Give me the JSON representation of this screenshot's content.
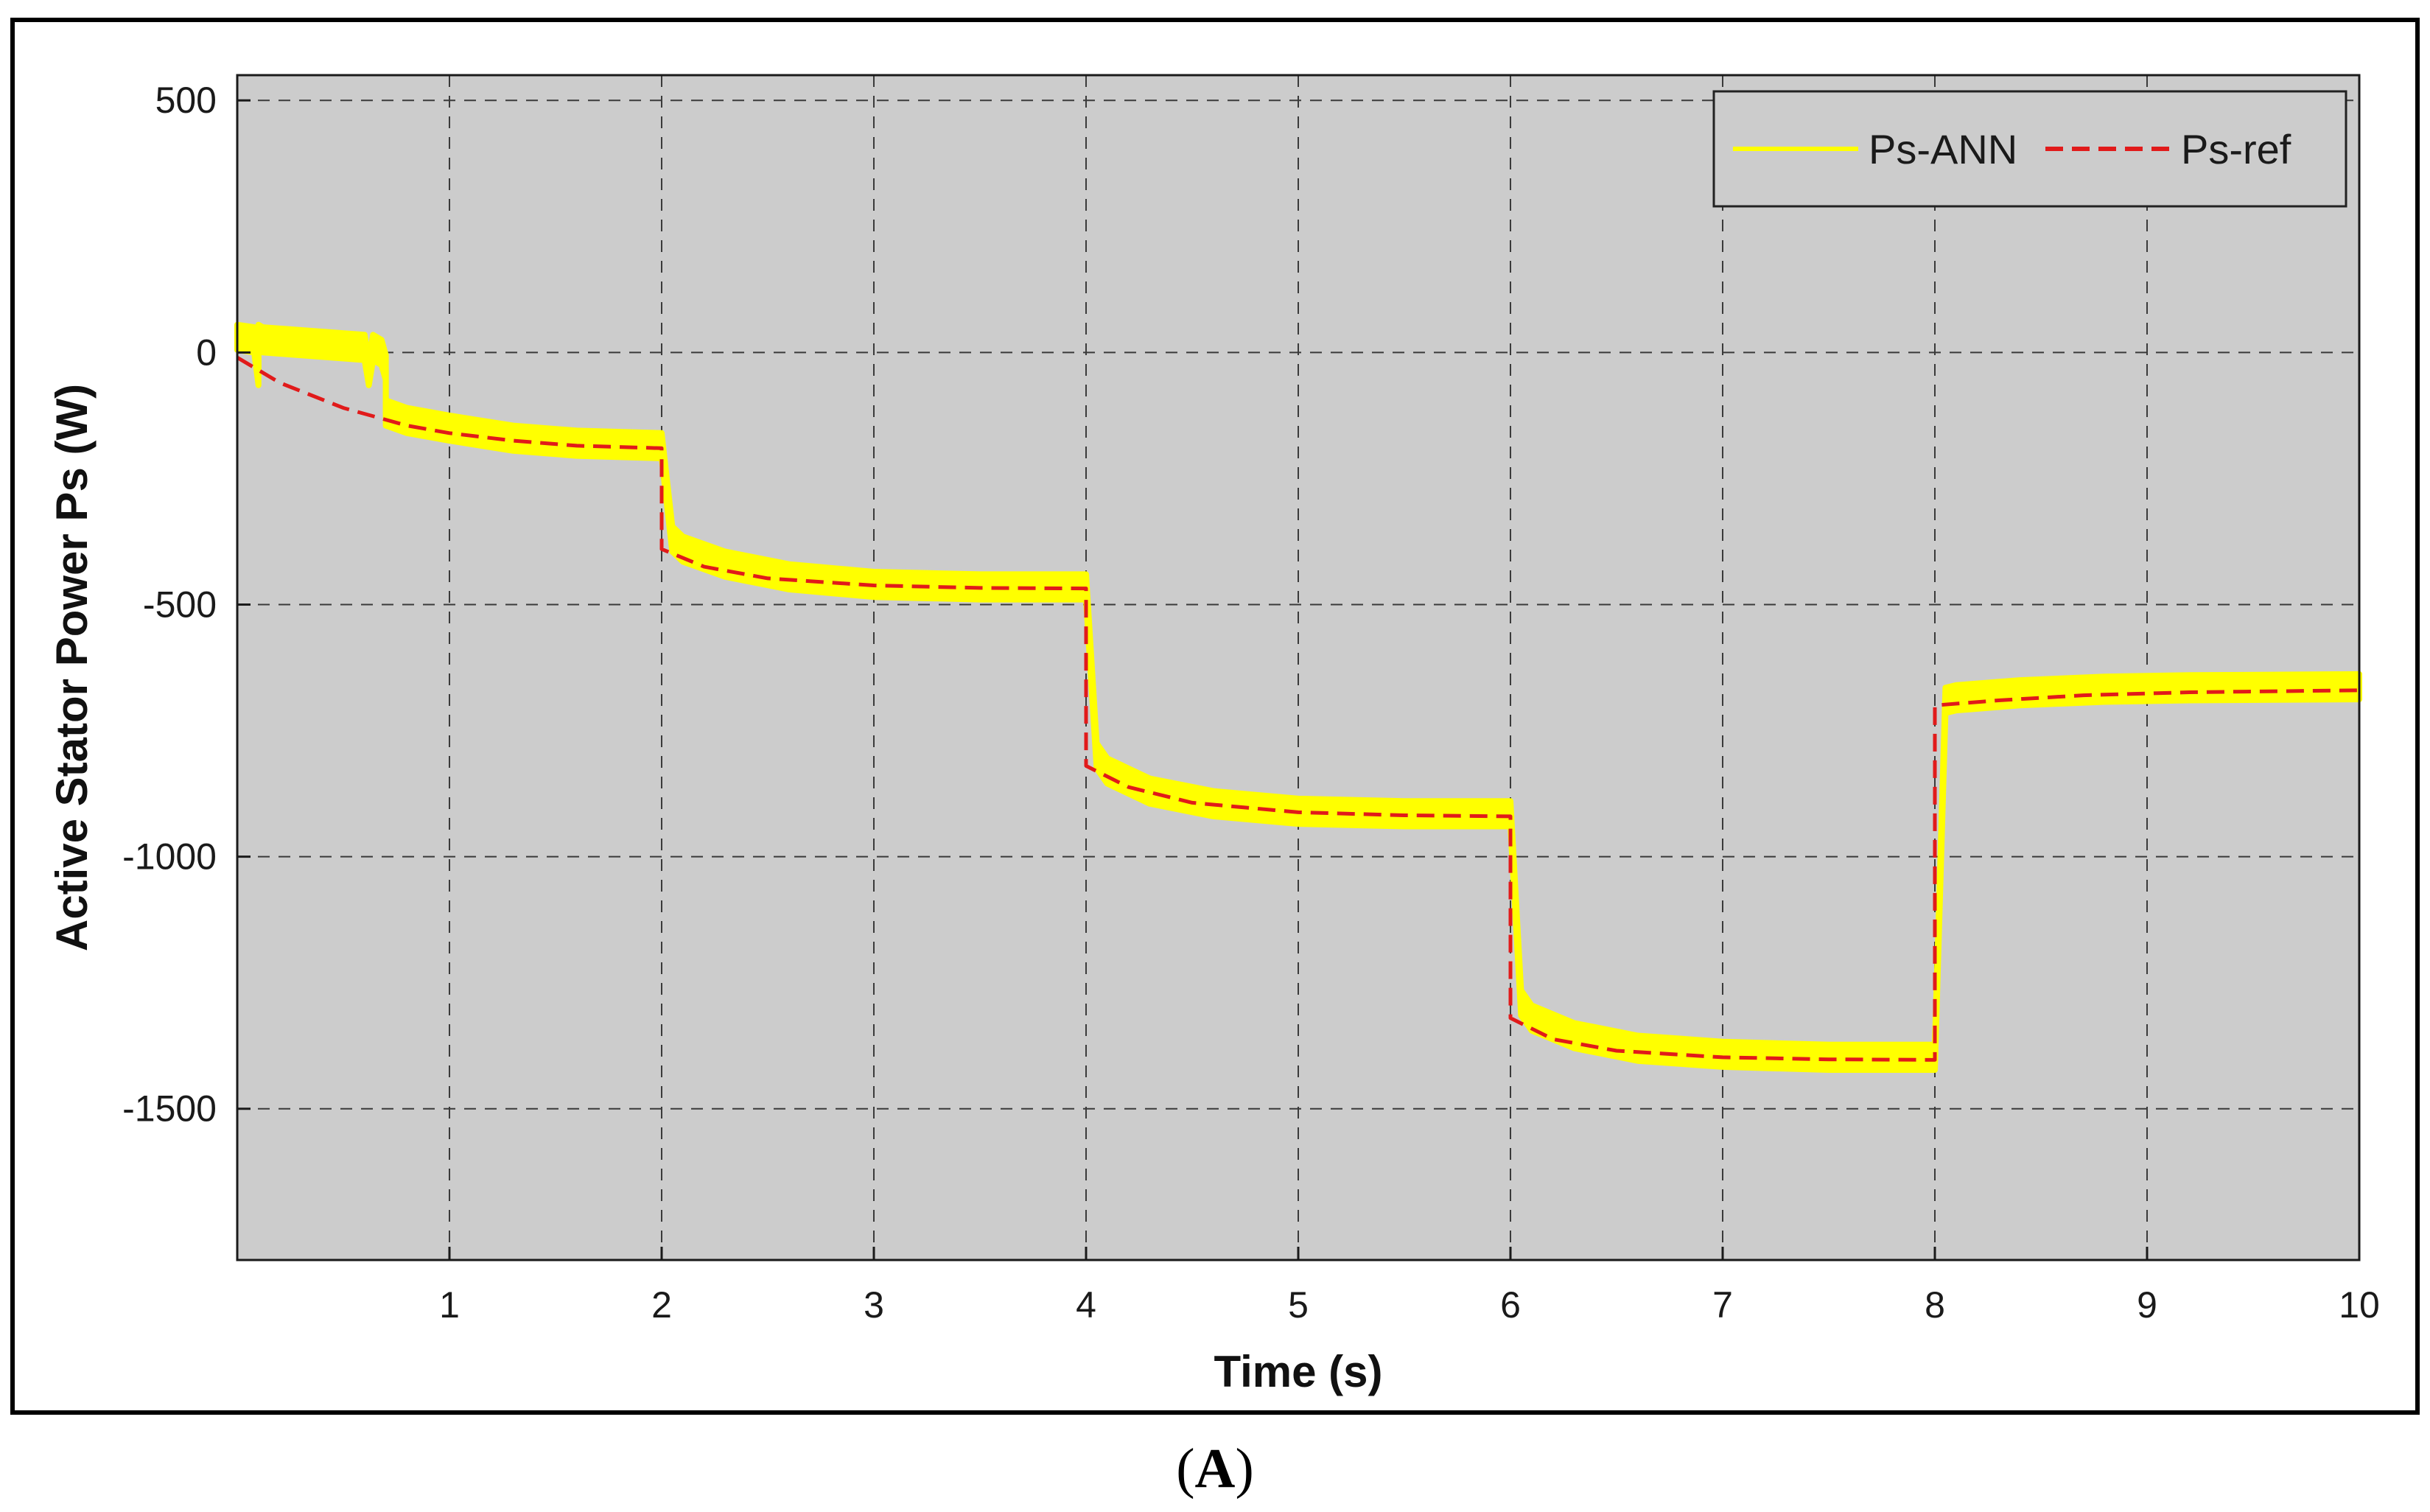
{
  "chart_data": {
    "type": "line",
    "title": "",
    "xlabel": "Time (s)",
    "ylabel": "Active Stator Power Ps (W)",
    "xlim": [
      0,
      10
    ],
    "ylim": [
      -1800,
      550
    ],
    "xticks": [
      1,
      2,
      3,
      4,
      5,
      6,
      7,
      8,
      9,
      10
    ],
    "yticks": [
      500,
      0,
      -500,
      -1000,
      -1500
    ],
    "grid": true,
    "legend_position": "top-right",
    "plot_background": "#cccccc",
    "series": [
      {
        "name": "Ps-ANN",
        "style": "solid",
        "color": "#ffff00",
        "band_halfwidth": 25,
        "x": [
          0,
          0.08,
          0.1,
          0.1,
          0.12,
          0.6,
          0.62,
          0.64,
          0.68,
          0.7,
          0.7,
          0.8,
          1.0,
          1.3,
          1.6,
          2.0,
          2.05,
          2.1,
          2.3,
          2.6,
          3.0,
          3.5,
          4.0,
          4.05,
          4.1,
          4.3,
          4.6,
          5.0,
          5.5,
          6.0,
          6.05,
          6.1,
          6.3,
          6.6,
          7.0,
          7.5,
          8.0,
          8.05,
          8.1,
          8.4,
          8.8,
          9.2,
          9.6,
          10.0
        ],
        "y": [
          30,
          25,
          -40,
          30,
          25,
          10,
          -40,
          10,
          0,
          -30,
          -120,
          -135,
          -150,
          -170,
          -180,
          -185,
          -370,
          -390,
          -420,
          -445,
          -460,
          -465,
          -465,
          -800,
          -830,
          -870,
          -895,
          -910,
          -915,
          -915,
          -1290,
          -1320,
          -1355,
          -1380,
          -1392,
          -1398,
          -1398,
          -690,
          -685,
          -675,
          -668,
          -665,
          -664,
          -663
        ]
      },
      {
        "name": "Ps-ref",
        "style": "dashed",
        "color": "#e11a1a",
        "x": [
          0,
          0.2,
          0.5,
          0.8,
          1.0,
          1.3,
          1.6,
          2.0,
          2.0,
          2.2,
          2.5,
          3.0,
          3.5,
          4.0,
          4.0,
          4.2,
          4.5,
          5.0,
          5.5,
          6.0,
          6.0,
          6.2,
          6.5,
          7.0,
          7.5,
          8.0,
          8.0,
          8.3,
          8.7,
          9.2,
          10.0
        ],
        "y": [
          -10,
          -60,
          -110,
          -145,
          -160,
          -175,
          -185,
          -190,
          -390,
          -425,
          -448,
          -462,
          -467,
          -468,
          -820,
          -862,
          -893,
          -912,
          -918,
          -920,
          -1320,
          -1362,
          -1385,
          -1398,
          -1402,
          -1403,
          -700,
          -690,
          -680,
          -674,
          -670
        ]
      }
    ]
  },
  "caption": {
    "open": "(",
    "letter": "A",
    "close": ")"
  }
}
